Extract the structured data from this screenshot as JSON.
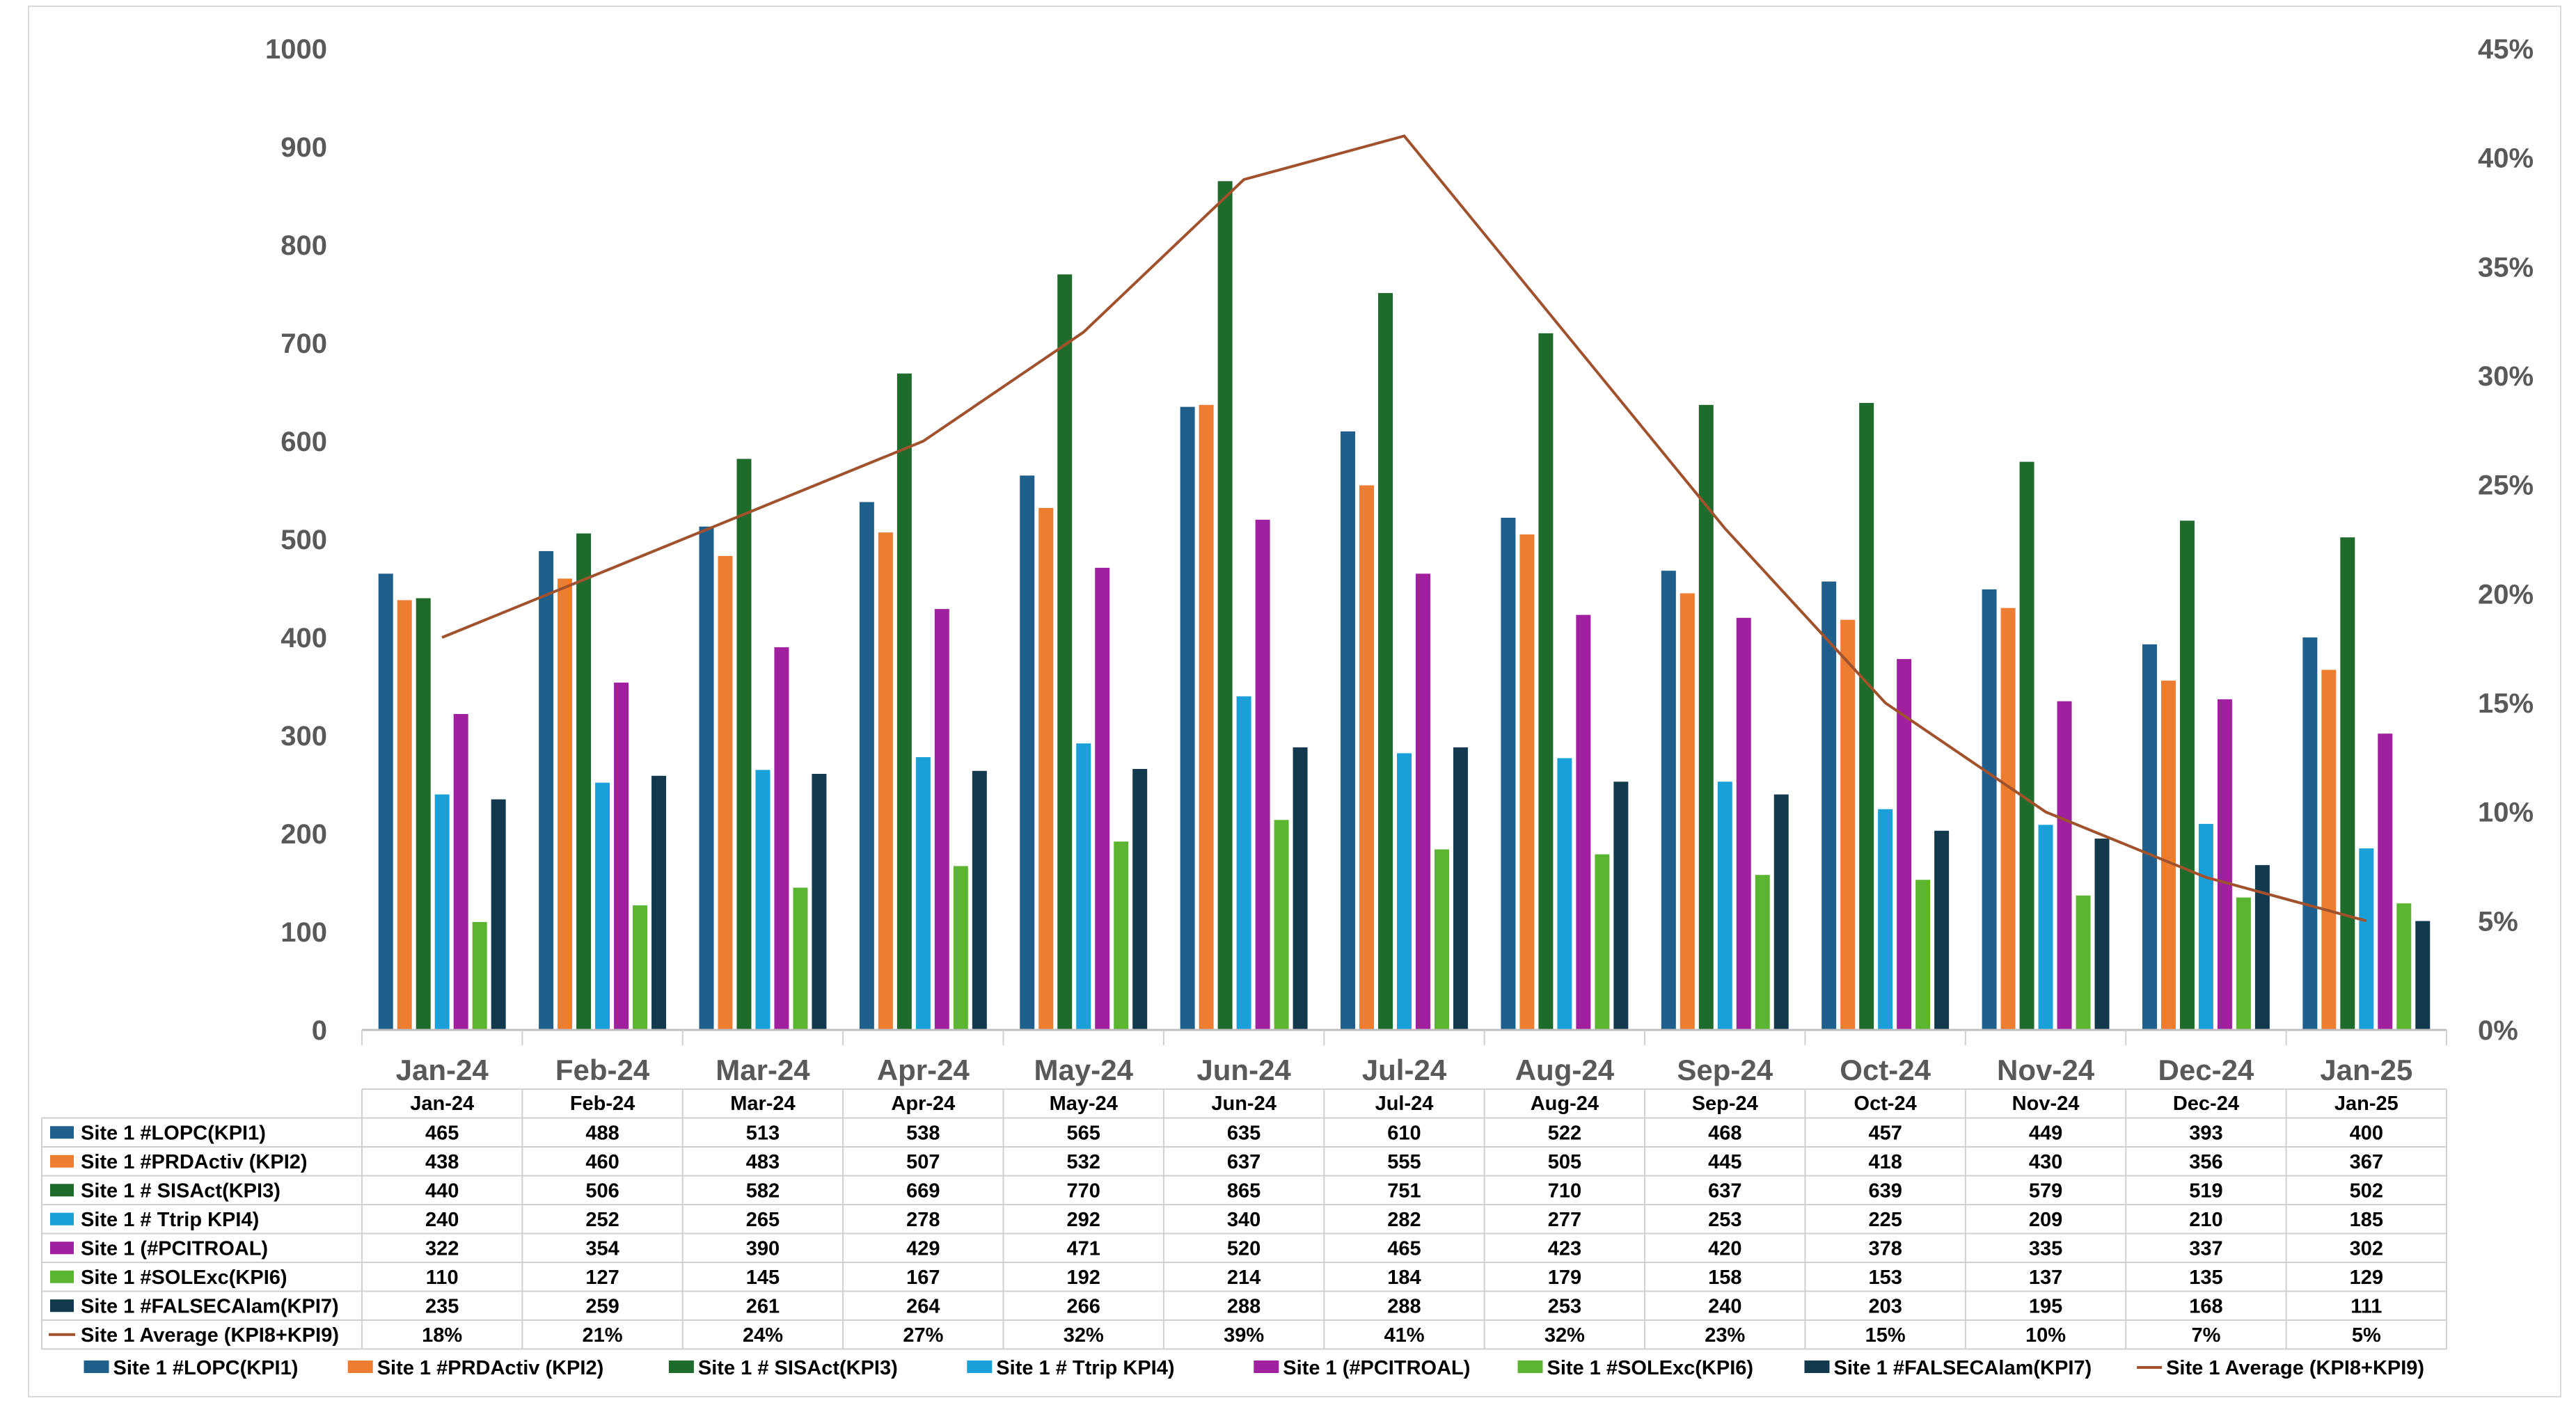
{
  "chart_data": {
    "type": "bar",
    "title": "",
    "xlabel": "",
    "ylabel": "",
    "ylim": [
      0,
      1000
    ],
    "y2lim": [
      0,
      45
    ],
    "yticks": [
      "0",
      "100",
      "200",
      "300",
      "400",
      "500",
      "600",
      "700",
      "800",
      "900",
      "1000"
    ],
    "y2ticks": [
      "0%",
      "5%",
      "10%",
      "15%",
      "20%",
      "25%",
      "30%",
      "35%",
      "40%",
      "45%"
    ],
    "categories": [
      "Jan-24",
      "Feb-24",
      "Mar-24",
      "Apr-24",
      "May-24",
      "Jun-24",
      "Jul-24",
      "Aug-24",
      "Sep-24",
      "Oct-24",
      "Nov-24",
      "Dec-24",
      "Jan-25"
    ],
    "legend_position": "bottom",
    "data_table": true,
    "series": [
      {
        "name": "Site 1 #LOPC(KPI1)",
        "type": "bar",
        "color": "#1f5f8b",
        "values": [
          465,
          488,
          513,
          538,
          565,
          635,
          610,
          522,
          468,
          457,
          449,
          393,
          400
        ]
      },
      {
        "name": "Site 1 #PRDActiv (KPI2)",
        "type": "bar",
        "color": "#ed7d31",
        "values": [
          438,
          460,
          483,
          507,
          532,
          637,
          555,
          505,
          445,
          418,
          430,
          356,
          367
        ]
      },
      {
        "name": "Site 1 # SISAct(KPI3)",
        "type": "bar",
        "color": "#1e6b2c",
        "values": [
          440,
          506,
          582,
          669,
          770,
          865,
          751,
          710,
          637,
          639,
          579,
          519,
          502
        ]
      },
      {
        "name": "Site 1 # Ttrip KPI4)",
        "type": "bar",
        "color": "#1aa0d8",
        "values": [
          240,
          252,
          265,
          278,
          292,
          340,
          282,
          277,
          253,
          225,
          209,
          210,
          185
        ]
      },
      {
        "name": "Site 1 (#PCITROAL)",
        "type": "bar",
        "color": "#a020a0",
        "values": [
          322,
          354,
          390,
          429,
          471,
          520,
          465,
          423,
          420,
          378,
          335,
          337,
          302
        ]
      },
      {
        "name": "Site 1 #SOLExc(KPI6)",
        "type": "bar",
        "color": "#5cb531",
        "values": [
          110,
          127,
          145,
          167,
          192,
          214,
          184,
          179,
          158,
          153,
          137,
          135,
          129
        ]
      },
      {
        "name": "Site 1 #FALSECAlam(KPI7)",
        "type": "bar",
        "color": "#13394f",
        "values": [
          235,
          259,
          261,
          264,
          266,
          288,
          288,
          253,
          240,
          203,
          195,
          168,
          111
        ]
      },
      {
        "name": "Site 1 Average (KPI8+KPI9)",
        "type": "line",
        "axis": "secondary",
        "color": "#a0522d",
        "values": [
          18,
          21,
          24,
          27,
          32,
          39,
          41,
          32,
          23,
          15,
          10,
          7,
          5
        ],
        "labels": [
          "18%",
          "21%",
          "24%",
          "27%",
          "32%",
          "39%",
          "41%",
          "32%",
          "23%",
          "15%",
          "10%",
          "7%",
          "5%"
        ]
      }
    ]
  }
}
